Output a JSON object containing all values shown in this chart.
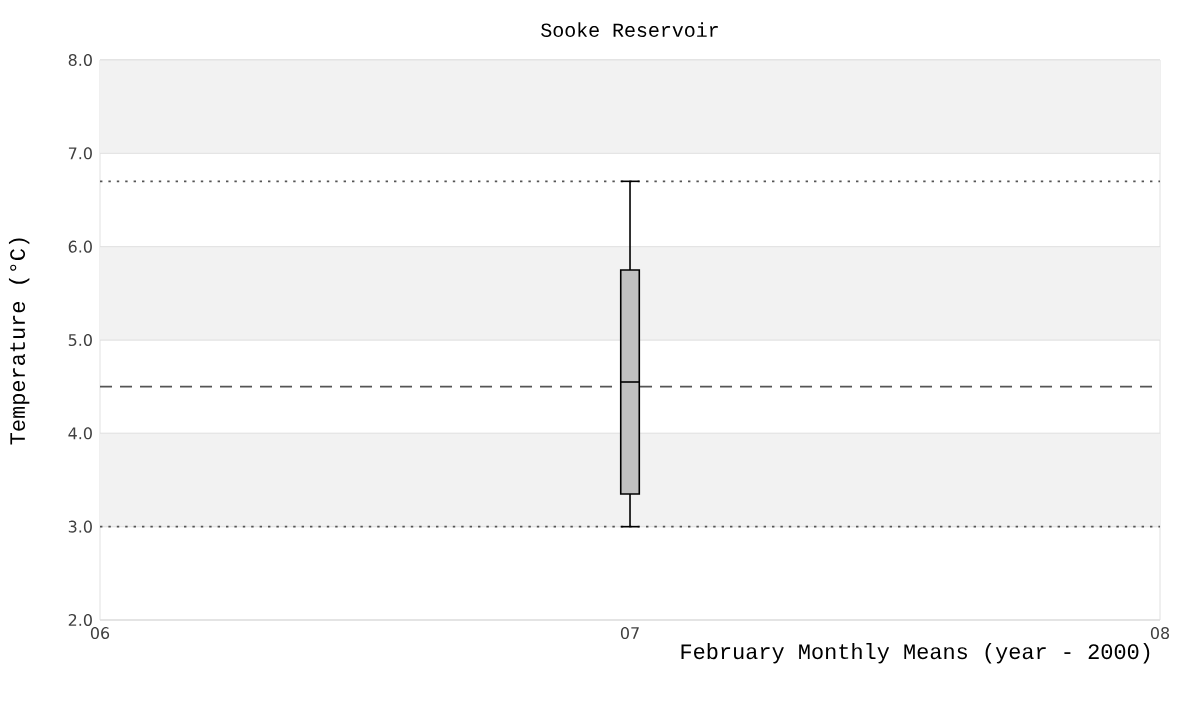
{
  "chart_data": {
    "type": "box",
    "title": "Sooke Reservoir",
    "xlabel": "February Monthly Means (year - 2000)",
    "ylabel": "Temperature (°C)",
    "x": [
      7
    ],
    "boxes": [
      {
        "low": 3.0,
        "q1": 3.35,
        "median": 4.55,
        "q3": 5.75,
        "high": 6.7
      }
    ],
    "color": "#c0c0c0",
    "xlim": [
      6,
      8
    ],
    "xticks": [
      {
        "value": 6,
        "label": "06"
      },
      {
        "value": 7,
        "label": "07"
      },
      {
        "value": 8,
        "label": "08"
      }
    ],
    "ylim": [
      2,
      8
    ],
    "yticks": [
      {
        "value": 2,
        "label": "2.0"
      },
      {
        "value": 3,
        "label": "3.0"
      },
      {
        "value": 4,
        "label": "4.0"
      },
      {
        "value": 5,
        "label": "5.0"
      },
      {
        "value": 6,
        "label": "6.0"
      },
      {
        "value": 7,
        "label": "7.0"
      },
      {
        "value": 8,
        "label": "8.0"
      }
    ],
    "grid": "y",
    "ref_lines": [
      {
        "axis": "y",
        "value": 6.7,
        "line_style": "dotted",
        "color": "#555555"
      },
      {
        "axis": "y",
        "value": 4.5,
        "line_style": "dashed",
        "color": "#555555"
      },
      {
        "axis": "y",
        "value": 3.0,
        "line_style": "dotted",
        "color": "#555555"
      }
    ]
  }
}
